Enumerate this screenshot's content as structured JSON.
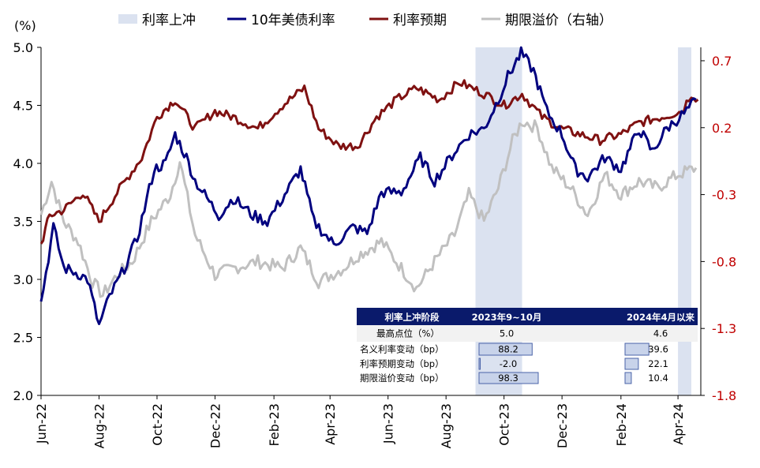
{
  "chart_data": {
    "type": "line",
    "unit_label": "(%)",
    "left_axis": {
      "ylim": [
        2.0,
        5.0
      ],
      "ticks": [
        "2.0",
        "2.5",
        "3.0",
        "3.5",
        "4.0",
        "4.5",
        "5.0"
      ]
    },
    "right_axis": {
      "ylim": [
        -1.8,
        0.8
      ],
      "ticks": [
        "-1.8",
        "-1.3",
        "-0.8",
        "-0.3",
        "0.2",
        "0.7"
      ]
    },
    "x_ticks": [
      "Jun-22",
      "Aug-22",
      "Oct-22",
      "Dec-22",
      "Feb-23",
      "Apr-23",
      "Jun-23",
      "Aug-23",
      "Oct-23",
      "Dec-23",
      "Feb-24",
      "Apr-24"
    ],
    "legend": {
      "shade": "利率上冲",
      "yield10": "10年美债利率",
      "expect": "利率预期",
      "premium": "期限溢价（右轴）"
    },
    "colors": {
      "yield10": "#00007f",
      "expect": "#7f1111",
      "premium": "#c0c0c0",
      "shade": "#dbe2f0"
    },
    "shaded_ranges": [
      {
        "from": "2023-09-01",
        "to": "2023-10-20"
      },
      {
        "from": "2024-04-01",
        "to": "2024-04-15"
      }
    ],
    "series": [
      {
        "name": "10年美债利率",
        "axis": "left",
        "points": [
          [
            "2022-06-01",
            2.8
          ],
          [
            "2022-06-14",
            3.45
          ],
          [
            "2022-06-25",
            3.1
          ],
          [
            "2022-07-10",
            3.05
          ],
          [
            "2022-07-20",
            3.0
          ],
          [
            "2022-08-01",
            2.6
          ],
          [
            "2022-08-12",
            2.85
          ],
          [
            "2022-08-25",
            3.05
          ],
          [
            "2022-09-10",
            3.35
          ],
          [
            "2022-09-28",
            3.95
          ],
          [
            "2022-10-10",
            4.0
          ],
          [
            "2022-10-20",
            4.25
          ],
          [
            "2022-11-01",
            4.05
          ],
          [
            "2022-11-10",
            3.85
          ],
          [
            "2022-12-05",
            3.55
          ],
          [
            "2022-12-20",
            3.7
          ],
          [
            "2023-01-10",
            3.55
          ],
          [
            "2023-01-25",
            3.5
          ],
          [
            "2023-02-10",
            3.7
          ],
          [
            "2023-03-01",
            3.95
          ],
          [
            "2023-03-15",
            3.5
          ],
          [
            "2023-04-05",
            3.3
          ],
          [
            "2023-04-25",
            3.45
          ],
          [
            "2023-05-10",
            3.4
          ],
          [
            "2023-05-25",
            3.75
          ],
          [
            "2023-06-15",
            3.75
          ],
          [
            "2023-07-05",
            4.05
          ],
          [
            "2023-07-20",
            3.85
          ],
          [
            "2023-08-10",
            4.1
          ],
          [
            "2023-08-25",
            4.25
          ],
          [
            "2023-09-10",
            4.3
          ],
          [
            "2023-09-25",
            4.55
          ],
          [
            "2023-10-05",
            4.75
          ],
          [
            "2023-10-19",
            4.95
          ],
          [
            "2023-11-01",
            4.8
          ],
          [
            "2023-11-15",
            4.45
          ],
          [
            "2023-12-01",
            4.25
          ],
          [
            "2023-12-15",
            3.95
          ],
          [
            "2023-12-28",
            3.88
          ],
          [
            "2024-01-15",
            4.05
          ],
          [
            "2024-02-01",
            3.95
          ],
          [
            "2024-02-20",
            4.3
          ],
          [
            "2024-03-05",
            4.1
          ],
          [
            "2024-03-20",
            4.3
          ],
          [
            "2024-04-10",
            4.45
          ],
          [
            "2024-04-20",
            4.55
          ]
        ]
      },
      {
        "name": "利率预期",
        "axis": "left",
        "points": [
          [
            "2022-06-01",
            3.3
          ],
          [
            "2022-06-10",
            3.55
          ],
          [
            "2022-06-25",
            3.6
          ],
          [
            "2022-07-15",
            3.75
          ],
          [
            "2022-08-01",
            3.5
          ],
          [
            "2022-08-20",
            3.75
          ],
          [
            "2022-09-15",
            4.05
          ],
          [
            "2022-10-01",
            4.4
          ],
          [
            "2022-10-20",
            4.55
          ],
          [
            "2022-11-10",
            4.3
          ],
          [
            "2022-12-01",
            4.45
          ],
          [
            "2022-12-20",
            4.4
          ],
          [
            "2023-01-15",
            4.3
          ],
          [
            "2023-02-10",
            4.5
          ],
          [
            "2023-03-05",
            4.65
          ],
          [
            "2023-03-20",
            4.3
          ],
          [
            "2023-04-10",
            4.15
          ],
          [
            "2023-04-30",
            4.15
          ],
          [
            "2023-05-20",
            4.4
          ],
          [
            "2023-06-10",
            4.55
          ],
          [
            "2023-07-01",
            4.65
          ],
          [
            "2023-07-25",
            4.55
          ],
          [
            "2023-08-15",
            4.7
          ],
          [
            "2023-09-10",
            4.6
          ],
          [
            "2023-10-01",
            4.5
          ],
          [
            "2023-10-20",
            4.6
          ],
          [
            "2023-11-10",
            4.4
          ],
          [
            "2023-11-30",
            4.3
          ],
          [
            "2023-12-20",
            4.25
          ],
          [
            "2024-01-10",
            4.2
          ],
          [
            "2024-02-01",
            4.25
          ],
          [
            "2024-02-20",
            4.35
          ],
          [
            "2024-03-15",
            4.4
          ],
          [
            "2024-04-05",
            4.45
          ],
          [
            "2024-04-15",
            4.6
          ],
          [
            "2024-04-22",
            4.55
          ]
        ]
      },
      {
        "name": "期限溢价（右轴）",
        "axis": "right",
        "points": [
          [
            "2022-06-01",
            -0.45
          ],
          [
            "2022-06-12",
            -0.2
          ],
          [
            "2022-06-25",
            -0.5
          ],
          [
            "2022-07-10",
            -0.65
          ],
          [
            "2022-07-25",
            -0.95
          ],
          [
            "2022-08-05",
            -1.05
          ],
          [
            "2022-08-20",
            -0.9
          ],
          [
            "2022-09-05",
            -0.8
          ],
          [
            "2022-09-25",
            -0.5
          ],
          [
            "2022-10-15",
            -0.3
          ],
          [
            "2022-10-25",
            -0.05
          ],
          [
            "2022-11-10",
            -0.6
          ],
          [
            "2022-12-01",
            -0.9
          ],
          [
            "2022-12-20",
            -0.85
          ],
          [
            "2023-01-15",
            -0.8
          ],
          [
            "2023-02-10",
            -0.85
          ],
          [
            "2023-03-01",
            -0.7
          ],
          [
            "2023-03-20",
            -0.95
          ],
          [
            "2023-04-15",
            -0.85
          ],
          [
            "2023-05-01",
            -0.75
          ],
          [
            "2023-05-25",
            -0.65
          ],
          [
            "2023-06-15",
            -0.85
          ],
          [
            "2023-07-01",
            -1.0
          ],
          [
            "2023-07-20",
            -0.8
          ],
          [
            "2023-08-10",
            -0.6
          ],
          [
            "2023-08-25",
            -0.3
          ],
          [
            "2023-09-10",
            -0.5
          ],
          [
            "2023-09-25",
            -0.25
          ],
          [
            "2023-10-10",
            0.1
          ],
          [
            "2023-10-20",
            0.25
          ],
          [
            "2023-11-05",
            0.2
          ],
          [
            "2023-11-20",
            -0.1
          ],
          [
            "2023-12-10",
            -0.25
          ],
          [
            "2023-12-28",
            -0.45
          ],
          [
            "2024-01-15",
            -0.15
          ],
          [
            "2024-02-01",
            -0.3
          ],
          [
            "2024-02-20",
            -0.2
          ],
          [
            "2024-03-10",
            -0.25
          ],
          [
            "2024-04-01",
            -0.15
          ],
          [
            "2024-04-20",
            -0.1
          ]
        ]
      }
    ]
  },
  "table": {
    "header": [
      "利率上冲阶段",
      "2023年9~10月",
      "2024年4月以来"
    ],
    "rows": [
      {
        "label": "最高点位（%）",
        "v1": "5.0",
        "v2": "4.6",
        "bar": false
      },
      {
        "label": "名义利率变动（bp）",
        "v1": "88.2",
        "v2": "39.6",
        "bar": true,
        "n1": 88.2,
        "n2": 39.6
      },
      {
        "label": "利率预期变动（bp）",
        "v1": "-2.0",
        "v2": "22.1",
        "bar": true,
        "n1": -2.0,
        "n2": 22.1
      },
      {
        "label": "期限溢价变动（bp）",
        "v1": "98.3",
        "v2": "10.4",
        "bar": true,
        "n1": 98.3,
        "n2": 10.4
      }
    ],
    "header_color": "#0a1a6b",
    "negative_color": "#e02020"
  }
}
